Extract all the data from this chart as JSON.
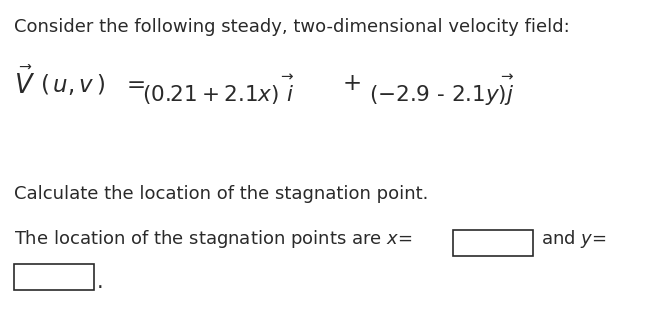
{
  "background_color": "#ffffff",
  "text_color": "#2a2a2a",
  "line1": "Consider the following steady, two-dimensional velocity field:",
  "line3_calc": "Calculate the location of the stagnation point.",
  "font_size_main": 13.0,
  "font_size_eq": 15.5,
  "fig_w": 6.67,
  "fig_h": 3.34,
  "dpi": 100
}
